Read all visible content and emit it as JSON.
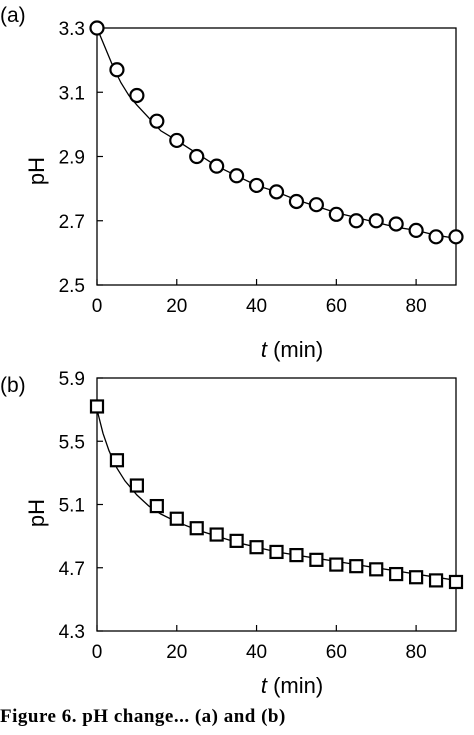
{
  "chart_data": [
    {
      "type": "scatter",
      "panel_label": "(a)",
      "xlabel_italic": "t",
      "xlabel_rest": " (min)",
      "ylabel": "pH",
      "xlim": [
        0,
        90
      ],
      "ylim": [
        2.5,
        3.3
      ],
      "xticks": [
        0,
        20,
        40,
        60,
        80
      ],
      "yticks": [
        2.5,
        2.7,
        2.9,
        3.1,
        3.3
      ],
      "ytick_labels": [
        "2.5",
        "2.7",
        "2.9",
        "3.1",
        "3.3"
      ],
      "marker": "circle",
      "grid": false,
      "series": [
        {
          "x": [
            0,
            5,
            10,
            15,
            20,
            25,
            30,
            35,
            40,
            45,
            50,
            55,
            60,
            65,
            70,
            75,
            80,
            85,
            90
          ],
          "y": [
            3.3,
            3.17,
            3.09,
            3.01,
            2.95,
            2.9,
            2.87,
            2.84,
            2.81,
            2.79,
            2.76,
            2.75,
            2.72,
            2.7,
            2.7,
            2.69,
            2.67,
            2.65,
            2.65
          ]
        }
      ],
      "fit_curve": {
        "x": [
          0,
          2,
          4,
          6,
          8,
          10,
          13,
          16,
          20,
          25,
          30,
          35,
          40,
          45,
          50,
          55,
          60,
          65,
          70,
          75,
          80,
          85,
          90
        ],
        "y": [
          3.3,
          3.24,
          3.18,
          3.13,
          3.09,
          3.06,
          3.02,
          2.98,
          2.95,
          2.91,
          2.87,
          2.84,
          2.81,
          2.79,
          2.765,
          2.745,
          2.725,
          2.71,
          2.695,
          2.68,
          2.67,
          2.655,
          2.645
        ]
      }
    },
    {
      "type": "scatter",
      "panel_label": "(b)",
      "xlabel_italic": "t",
      "xlabel_rest": " (min)",
      "ylabel": "pH",
      "xlim": [
        0,
        90
      ],
      "ylim": [
        4.3,
        5.9
      ],
      "xticks": [
        0,
        20,
        40,
        60,
        80
      ],
      "yticks": [
        4.3,
        4.7,
        5.1,
        5.5,
        5.9
      ],
      "ytick_labels": [
        "4.3",
        "4.7",
        "5.1",
        "5.5",
        "5.9"
      ],
      "marker": "square",
      "grid": false,
      "series": [
        {
          "x": [
            0,
            5,
            10,
            15,
            20,
            25,
            30,
            35,
            40,
            45,
            50,
            55,
            60,
            65,
            70,
            75,
            80,
            85,
            90
          ],
          "y": [
            5.72,
            5.38,
            5.22,
            5.09,
            5.01,
            4.95,
            4.91,
            4.87,
            4.83,
            4.8,
            4.78,
            4.75,
            4.72,
            4.71,
            4.69,
            4.66,
            4.64,
            4.62,
            4.61
          ]
        }
      ],
      "fit_curve": {
        "x": [
          0,
          1.5,
          3,
          5,
          7,
          10,
          13,
          16,
          20,
          25,
          30,
          35,
          40,
          45,
          50,
          55,
          60,
          65,
          70,
          75,
          80,
          85,
          90
        ],
        "y": [
          5.7,
          5.55,
          5.44,
          5.33,
          5.25,
          5.16,
          5.09,
          5.04,
          4.99,
          4.94,
          4.9,
          4.86,
          4.83,
          4.8,
          4.78,
          4.76,
          4.74,
          4.72,
          4.7,
          4.68,
          4.66,
          4.64,
          4.62
        ]
      }
    }
  ],
  "caption": "Figure 6. pH change... (a) and (b)"
}
